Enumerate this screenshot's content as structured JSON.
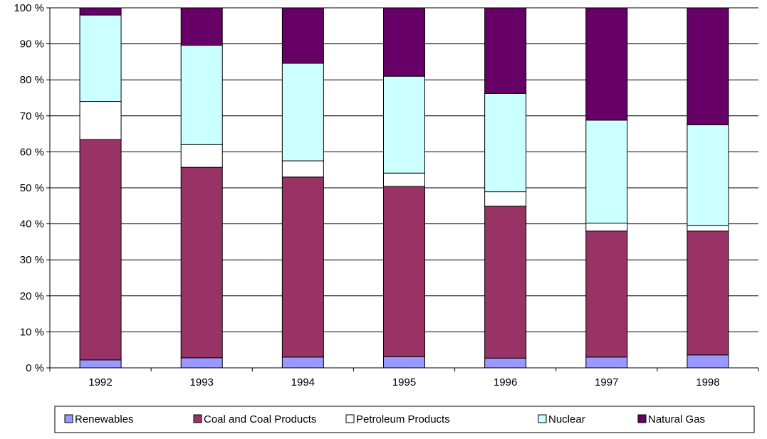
{
  "chart_data": {
    "type": "bar",
    "stacked": "percent",
    "categories": [
      "1992",
      "1993",
      "1994",
      "1995",
      "1996",
      "1997",
      "1998"
    ],
    "ylim": [
      0,
      100
    ],
    "yticks": [
      "0 %",
      "10 %",
      "20 %",
      "30 %",
      "40 %",
      "50 %",
      "60 %",
      "70 %",
      "80 %",
      "90 %",
      "100 %"
    ],
    "grid": true,
    "legend_position": "bottom",
    "series": [
      {
        "name": "Renewables",
        "color": "#9999ff",
        "values": [
          2.2,
          2.8,
          3.0,
          3.1,
          2.7,
          3.0,
          3.6
        ]
      },
      {
        "name": "Coal and Coal Products",
        "color": "#993366",
        "values": [
          61.2,
          52.9,
          50.0,
          47.3,
          42.2,
          35.0,
          34.4
        ]
      },
      {
        "name": "Petroleum Products",
        "color": "#ffffff",
        "values": [
          10.6,
          6.3,
          4.5,
          3.7,
          4.0,
          2.2,
          1.6
        ]
      },
      {
        "name": "Nuclear",
        "color": "#ccffff",
        "values": [
          24.0,
          27.6,
          27.1,
          26.9,
          27.3,
          28.6,
          27.9
        ]
      },
      {
        "name": "Natural Gas",
        "color": "#660066",
        "values": [
          2.0,
          10.4,
          15.4,
          19.0,
          23.8,
          31.2,
          32.5
        ]
      }
    ]
  }
}
